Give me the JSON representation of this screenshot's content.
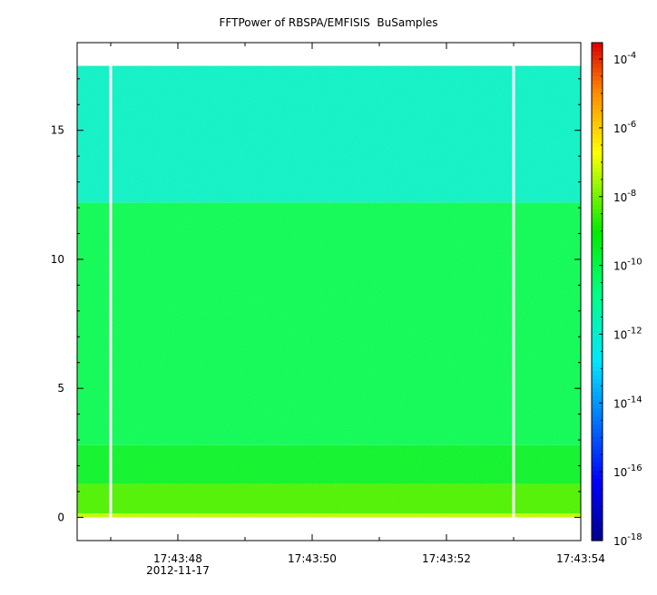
{
  "chart_data": {
    "type": "heatmap",
    "title": "FFTPower of RBSPA/EMFISIS  BuSamples",
    "xlabel": "",
    "ylabel": "",
    "x": {
      "start": "17:43:46.5",
      "end": "17:43:54",
      "tick_labels": [
        "17:43:48",
        "17:43:50",
        "17:43:52",
        "17:43:54"
      ],
      "date_label": "2012-11-17",
      "ticks_seconds": [
        47.0,
        48.0,
        49.0,
        50.0,
        51.0,
        52.0,
        53.0,
        54.0
      ]
    },
    "y": {
      "range": [
        -0.9,
        18.4
      ],
      "ticks": [
        0,
        5,
        10,
        15
      ],
      "tick_labels": [
        "0",
        "5",
        "10",
        "15"
      ],
      "data_top": 17.5
    },
    "colorbar": {
      "scale": "log",
      "range": [
        1e-18,
        0.0003
      ],
      "tick_exponents": [
        -18,
        -16,
        -14,
        -12,
        -10,
        -8,
        -6,
        -4
      ],
      "tick_base": "10"
    },
    "gaps": [
      {
        "t_sec": 47.0
      },
      {
        "t_sec": 53.0
      }
    ],
    "bands": [
      {
        "y_from": 0.0,
        "y_to": 0.15,
        "log_power": -7.3
      },
      {
        "y_from": 0.15,
        "y_to": 1.3,
        "log_power": -8.4
      },
      {
        "y_from": 1.3,
        "y_to": 2.8,
        "log_power": -9.6
      },
      {
        "y_from": 2.8,
        "y_to": 12.2,
        "log_power": -10.2
      },
      {
        "y_from": 12.2,
        "y_to": 17.5,
        "log_power": -12.0
      }
    ],
    "grid": false,
    "legend": "none"
  }
}
